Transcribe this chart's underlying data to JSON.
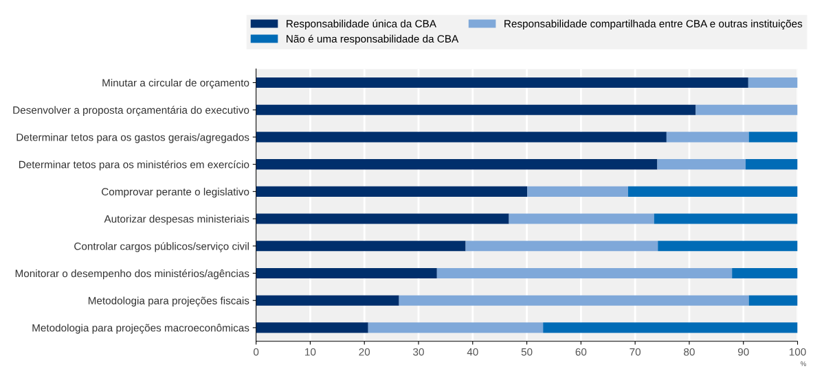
{
  "chart_data": {
    "type": "bar",
    "orientation": "horizontal",
    "stacked": true,
    "categories": [
      "Minutar a circular de orçamento",
      "Desenvolver a proposta orçamentária do executivo",
      "Determinar tetos para os gastos gerais/agregados",
      "Determinar tetos para os ministérios em exercício",
      "Comprovar perante o legislativo",
      "Autorizar despesas ministeriais",
      "Controlar cargos públicos/serviço civil",
      "Monitorar o desempenho dos ministérios/agências",
      "Metodologia para projeções fiscais",
      "Metodologia para projeções macroeconômicas"
    ],
    "series": [
      {
        "name": "Responsabilidade única da CBA",
        "color": "#002f6c",
        "values": [
          90.9,
          81.2,
          75.8,
          74.1,
          50.1,
          46.7,
          38.7,
          33.4,
          26.4,
          20.7
        ]
      },
      {
        "name": "Responsabilidade compartilhada entre CBA e outras instituições",
        "color": "#7fa8d9",
        "values": [
          9.1,
          18.8,
          15.2,
          16.3,
          18.6,
          26.8,
          35.5,
          54.5,
          64.6,
          32.3
        ]
      },
      {
        "name": "Não é uma responsabilidade da CBA",
        "color": "#006bb6",
        "values": [
          0,
          0,
          9.0,
          9.6,
          31.3,
          26.5,
          25.8,
          12.1,
          9.0,
          47.0
        ]
      }
    ],
    "xlim": [
      0,
      100
    ],
    "xticks": [
      0,
      10,
      20,
      30,
      40,
      50,
      60,
      70,
      80,
      90,
      100
    ],
    "xlabel": "%",
    "grid": "x",
    "legend": "top"
  }
}
